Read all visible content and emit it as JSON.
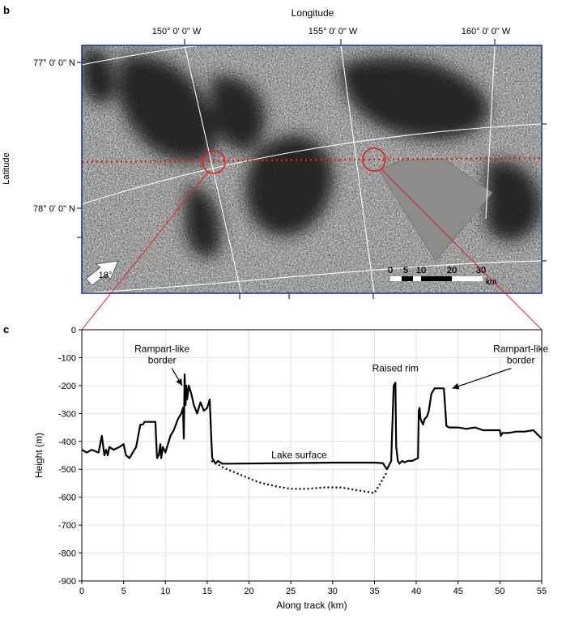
{
  "panel_b": {
    "label": "b",
    "x_axis_title": "Longitude",
    "y_axis_title": "Latitude",
    "longitude_ticks": [
      "150° 0' 0\" W",
      "155° 0' 0\" W",
      "160° 0' 0\" W"
    ],
    "latitude_ticks": [
      "77° 0' 0\" N",
      "78° 0' 0\" N"
    ],
    "north_arrow_label": "18°",
    "scale_bar": {
      "ticks": [
        "0",
        "5",
        "10",
        "20",
        "30"
      ],
      "unit": "km"
    },
    "colors": {
      "track": "#e02020",
      "frame": "#1a2c8c",
      "radar_dark": "#141414",
      "radar_bright": "#d8d8d8"
    }
  },
  "panel_c": {
    "label": "c"
  },
  "chart_data": {
    "type": "line",
    "title": "",
    "xlabel": "Along track (km)",
    "ylabel": "Height (m)",
    "xlim": [
      0,
      55
    ],
    "ylim": [
      -900,
      0
    ],
    "x_ticks": [
      "0",
      "5",
      "10",
      "15",
      "20",
      "25",
      "30",
      "35",
      "40",
      "45",
      "50",
      "55"
    ],
    "y_ticks": [
      "0",
      "-100",
      "-200",
      "-300",
      "-400",
      "-500",
      "-600",
      "-700",
      "-800",
      "-900"
    ],
    "grid": true,
    "series": [
      {
        "style": "solid",
        "x": [
          0,
          0.6,
          1.2,
          2.0,
          2.4,
          2.7,
          2.9,
          3.1,
          3.3,
          3.8,
          4.5,
          5.0,
          5.3,
          5.7,
          6.5,
          7.0,
          7.3,
          7.5,
          8.8,
          9.0,
          9.2,
          9.4,
          9.5,
          9.7,
          10.0,
          10.3,
          10.6,
          11.0,
          11.5,
          11.9,
          12.1,
          12.2,
          12.3,
          12.4,
          12.5,
          12.6,
          12.8,
          13.1,
          13.4,
          13.8,
          14.2,
          14.6,
          15.0,
          15.3,
          15.5,
          15.6,
          15.8,
          16.0,
          16.3,
          16.8,
          17.5,
          25,
          30,
          35,
          36.0,
          36.5,
          37.0,
          37.3,
          37.5,
          37.6,
          37.8,
          38.0,
          38.3,
          38.6,
          39.0,
          39.5,
          40.2,
          40.3,
          40.4,
          40.5,
          40.8,
          41.0,
          41.3,
          41.5,
          41.8,
          42.2,
          42.5,
          42.8,
          43.3,
          43.6,
          43.9,
          45,
          46,
          47,
          48,
          49,
          50,
          50.1,
          50.3,
          51,
          52,
          53,
          54,
          55
        ],
        "y": [
          -430,
          -440,
          -430,
          -440,
          -380,
          -450,
          -430,
          -450,
          -420,
          -430,
          -420,
          -410,
          -450,
          -460,
          -420,
          -340,
          -340,
          -330,
          -330,
          -460,
          -450,
          -410,
          -460,
          -420,
          -440,
          -410,
          -380,
          -360,
          -320,
          -300,
          -280,
          -390,
          -160,
          -270,
          -200,
          -250,
          -200,
          -230,
          -270,
          -300,
          -260,
          -290,
          -280,
          -250,
          -400,
          -460,
          -470,
          -480,
          -470,
          -480,
          -480,
          -478,
          -476,
          -476,
          -478,
          -500,
          -470,
          -200,
          -190,
          -420,
          -470,
          -480,
          -470,
          -475,
          -470,
          -470,
          -460,
          -290,
          -280,
          -320,
          -340,
          -320,
          -310,
          -290,
          -230,
          -210,
          -210,
          -210,
          -210,
          -345,
          -350,
          -350,
          -355,
          -350,
          -360,
          -360,
          -360,
          -380,
          -370,
          -370,
          -365,
          -365,
          -360,
          -390
        ]
      },
      {
        "style": "dotted",
        "x": [
          15.5,
          17,
          19,
          21,
          23,
          25,
          27,
          29,
          31,
          33,
          35,
          36.5
        ],
        "y": [
          -470,
          -495,
          -520,
          -545,
          -560,
          -570,
          -570,
          -565,
          -565,
          -575,
          -585,
          -510
        ]
      }
    ],
    "annotations": [
      {
        "text": "Rampart-like border",
        "lines": [
          "Rampart-like",
          "border"
        ],
        "x": 9.6,
        "y": -80,
        "arrow_to": [
          12.0,
          -200
        ]
      },
      {
        "text": "Raised rim",
        "lines": [
          "Raised rim"
        ],
        "x": 37.5,
        "y": -150,
        "arrow_to": null
      },
      {
        "text": "Rampart-like border",
        "lines": [
          "Rampart-like",
          "border"
        ],
        "x": 52.5,
        "y": -80,
        "arrow_to": [
          44.3,
          -210
        ]
      },
      {
        "text": "Lake surface",
        "lines": [
          "Lake surface"
        ],
        "x": 26,
        "y": -460,
        "arrow_to": null
      }
    ]
  }
}
